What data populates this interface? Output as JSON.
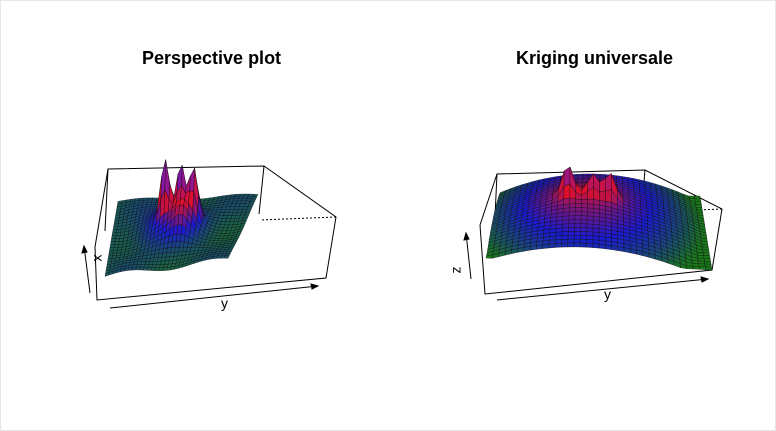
{
  "colors": {
    "low": "#1a7a1a",
    "mid": "#1a1ad0",
    "peak_mid": "#e0102a",
    "peak_top": "#7a18b0",
    "mesh": "#0a0a0a"
  },
  "chart_data": [
    {
      "type": "surface",
      "title": "Perspective plot",
      "xlabel": "x",
      "ylabel": "y",
      "zlabel": "",
      "colormap": [
        "green",
        "blue",
        "red",
        "purple"
      ],
      "box": true,
      "grid": false
    },
    {
      "type": "surface",
      "title": "Kriging universale",
      "xlabel": "",
      "ylabel": "y",
      "zlabel": "z",
      "colormap": [
        "green",
        "blue",
        "red",
        "purple"
      ],
      "box": true,
      "grid": false
    }
  ]
}
